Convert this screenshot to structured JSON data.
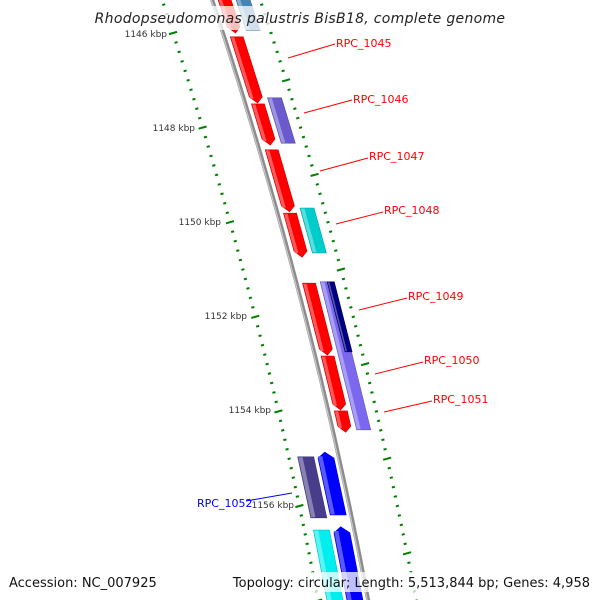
{
  "title": "Rhodopseudomonas palustris BisB18, complete genome",
  "footer": {
    "accession": "Accession: NC_007925",
    "summary": "Topology: circular; Length: 5,513,844 bp; Genes: 4,958"
  },
  "colors": {
    "forward_label": "#ff0000",
    "reverse_label": "#0000ff",
    "tick": "#008000",
    "backbone": "#8c8c8c"
  },
  "scale_labels": [
    "1146 kbp",
    "1148 kbp",
    "1150 kbp",
    "1152 kbp",
    "1154 kbp",
    "1156 kbp"
  ],
  "gene_labels": [
    {
      "name": "RPC_1045",
      "color": "#ff0000"
    },
    {
      "name": "RPC_1046",
      "color": "#ff0000"
    },
    {
      "name": "RPC_1047",
      "color": "#ff0000"
    },
    {
      "name": "RPC_1048",
      "color": "#ff0000"
    },
    {
      "name": "RPC_1049",
      "color": "#ff0000"
    },
    {
      "name": "RPC_1050",
      "color": "#ff0000"
    },
    {
      "name": "RPC_1051",
      "color": "#ff0000"
    },
    {
      "name": "RPC_1052",
      "color": "#0000ff"
    }
  ],
  "features": [
    {
      "track": 1,
      "start": 1144.9,
      "end": 1146.0,
      "arrow": "down",
      "color": "#ff0000"
    },
    {
      "track": 1,
      "start": 1146.08,
      "end": 1147.48,
      "arrow": "down",
      "color": "#ff0000"
    },
    {
      "track": 1,
      "start": 1147.5,
      "end": 1148.37,
      "arrow": "down",
      "color": "#ff0000"
    },
    {
      "track": 1,
      "start": 1148.47,
      "end": 1149.78,
      "arrow": "down",
      "color": "#ff0000"
    },
    {
      "track": 1,
      "start": 1149.81,
      "end": 1150.74,
      "arrow": "down",
      "color": "#ff0000"
    },
    {
      "track": 1,
      "start": 1151.29,
      "end": 1152.81,
      "arrow": "down",
      "color": "#ff0000"
    },
    {
      "track": 1,
      "start": 1152.83,
      "end": 1153.97,
      "arrow": "down",
      "color": "#ff0000"
    },
    {
      "track": 1,
      "start": 1153.99,
      "end": 1154.44,
      "arrow": "down",
      "color": "#ff0000"
    },
    {
      "track": 2,
      "start": 1144.9,
      "end": 1145.94,
      "arrow": "none",
      "color": "#4682b4"
    },
    {
      "track": 2,
      "start": 1147.37,
      "end": 1148.33,
      "arrow": "none",
      "color": "#6a5acd"
    },
    {
      "track": 2,
      "start": 1149.7,
      "end": 1150.65,
      "arrow": "none",
      "color": "#00cccc"
    },
    {
      "track": 2,
      "start": 1151.26,
      "end": 1154.39,
      "arrow": "none",
      "color": "#7b68ee"
    },
    {
      "track": 2.5,
      "start": 1151.26,
      "end": 1152.74,
      "arrow": "none",
      "color": "#000080"
    },
    {
      "track": -2,
      "start": 1154.96,
      "end": 1156.25,
      "arrow": "none",
      "color": "#483d8b"
    },
    {
      "track": -1,
      "start": 1154.86,
      "end": 1156.19,
      "arrow": "up",
      "color": "#0000ff"
    },
    {
      "track": -2,
      "start": 1156.51,
      "end": 1158.5,
      "arrow": "none",
      "color": "#00eeee"
    },
    {
      "track": -1,
      "start": 1156.44,
      "end": 1158.5,
      "arrow": "up",
      "color": "#0000ff"
    }
  ]
}
